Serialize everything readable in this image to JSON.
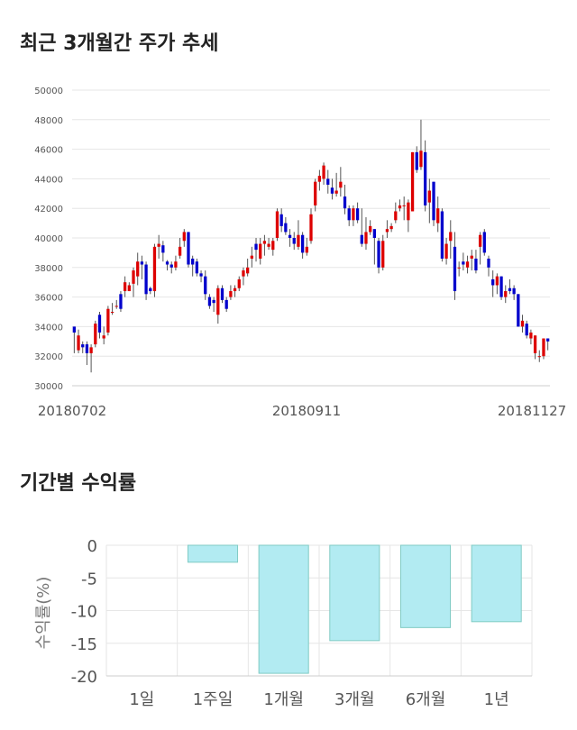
{
  "sections": {
    "price_title": "최근 3개월간 주가 추세",
    "return_title": "기간별 수익률"
  },
  "colors": {
    "up": "#dd0000",
    "down": "#0000cc",
    "bar_fill": "#b2ebf2",
    "bar_stroke": "#80cbc4",
    "grid": "#e6e6e6"
  },
  "chart_data": [
    {
      "type": "candlestick",
      "title": "최근 3개월간 주가 추세",
      "ylim": [
        30000,
        50000
      ],
      "y_ticks": [
        30000,
        32000,
        34000,
        36000,
        38000,
        40000,
        42000,
        44000,
        46000,
        48000,
        50000
      ],
      "x_tick_labels": [
        "20180702",
        "20180911",
        "20181127"
      ],
      "candles": [
        [
          34000,
          33600,
          34000,
          32200
        ],
        [
          32400,
          33400,
          33800,
          32200
        ],
        [
          32800,
          32600,
          33000,
          32200
        ],
        [
          32800,
          32200,
          33000,
          31400
        ],
        [
          32200,
          32600,
          32800,
          30900
        ],
        [
          32800,
          34200,
          34400,
          32600
        ],
        [
          34800,
          33600,
          35000,
          33200
        ],
        [
          33200,
          33400,
          34000,
          32800
        ],
        [
          33600,
          35200,
          35400,
          33400
        ],
        [
          35000,
          35000,
          35600,
          34800
        ],
        [
          35400,
          35400,
          35800,
          35200
        ],
        [
          36200,
          35200,
          36400,
          35000
        ],
        [
          36400,
          37000,
          37400,
          36000
        ],
        [
          36400,
          36800,
          37000,
          36400
        ],
        [
          36900,
          37800,
          38000,
          36000
        ],
        [
          37400,
          38400,
          39000,
          36800
        ],
        [
          38400,
          38200,
          38800,
          37200
        ],
        [
          38200,
          36200,
          38400,
          35800
        ],
        [
          36600,
          36400,
          36700,
          36200
        ],
        [
          36400,
          39400,
          39600,
          36000
        ],
        [
          39400,
          39600,
          40200,
          38600
        ],
        [
          39500,
          39000,
          39800,
          38400
        ],
        [
          38400,
          38200,
          38500,
          37800
        ],
        [
          38200,
          38000,
          38400,
          37600
        ],
        [
          38000,
          38400,
          38800,
          37800
        ],
        [
          38800,
          39400,
          40000,
          38600
        ],
        [
          39800,
          40400,
          40600,
          39400
        ],
        [
          40400,
          38200,
          40400,
          38000
        ],
        [
          38600,
          38200,
          38800,
          37400
        ],
        [
          38400,
          37600,
          38600,
          37400
        ],
        [
          37600,
          37400,
          37800,
          37000
        ],
        [
          37400,
          36200,
          37800,
          35800
        ],
        [
          36000,
          35400,
          36200,
          35200
        ],
        [
          35800,
          35600,
          36000,
          35000
        ],
        [
          34800,
          36600,
          36800,
          34200
        ],
        [
          36600,
          35800,
          36800,
          35600
        ],
        [
          35800,
          35200,
          36000,
          35000
        ],
        [
          36000,
          36400,
          36800,
          35800
        ],
        [
          36400,
          36600,
          36800,
          36000
        ],
        [
          36600,
          37200,
          37400,
          36400
        ],
        [
          37400,
          37800,
          38000,
          36800
        ],
        [
          37600,
          38000,
          38600,
          37400
        ],
        [
          38600,
          38800,
          39400,
          38000
        ],
        [
          39600,
          39200,
          40000,
          38400
        ],
        [
          38600,
          39600,
          40000,
          38200
        ],
        [
          39600,
          39800,
          40200,
          38800
        ],
        [
          39400,
          39600,
          40000,
          39200
        ],
        [
          39200,
          39800,
          40000,
          38800
        ],
        [
          40000,
          41800,
          42000,
          39800
        ],
        [
          41600,
          40800,
          42000,
          40400
        ],
        [
          41000,
          40400,
          41400,
          40200
        ],
        [
          40200,
          40000,
          40600,
          39400
        ],
        [
          40000,
          39600,
          40400,
          39200
        ],
        [
          39400,
          40200,
          41200,
          39200
        ],
        [
          40200,
          39000,
          40400,
          38600
        ],
        [
          39000,
          39400,
          40000,
          38800
        ],
        [
          39800,
          41600,
          42000,
          39600
        ],
        [
          42200,
          43800,
          44000,
          41800
        ],
        [
          43800,
          44200,
          44600,
          43200
        ],
        [
          44000,
          44900,
          45100,
          43600
        ],
        [
          44000,
          43600,
          44600,
          43000
        ],
        [
          43400,
          43000,
          44000,
          42600
        ],
        [
          43000,
          43200,
          44400,
          42800
        ],
        [
          43400,
          43800,
          44800,
          42800
        ],
        [
          42800,
          42000,
          43600,
          41600
        ],
        [
          42000,
          41200,
          42200,
          40800
        ],
        [
          41200,
          42000,
          42200,
          40800
        ],
        [
          42000,
          41200,
          42400,
          41000
        ],
        [
          40200,
          39600,
          42000,
          39400
        ],
        [
          39600,
          40400,
          41400,
          39200
        ],
        [
          40400,
          40800,
          41200,
          40200
        ],
        [
          40600,
          40000,
          40600,
          38200
        ],
        [
          39800,
          38000,
          40000,
          37600
        ],
        [
          38000,
          39800,
          40200,
          37800
        ],
        [
          40400,
          40600,
          41200,
          40000
        ],
        [
          40600,
          40800,
          41000,
          40400
        ],
        [
          41200,
          41800,
          42400,
          41000
        ],
        [
          42000,
          42200,
          42600,
          41800
        ],
        [
          42200,
          42200,
          42800,
          41200
        ],
        [
          41200,
          42400,
          42600,
          40400
        ],
        [
          41800,
          45800,
          45800,
          41800
        ],
        [
          45800,
          44600,
          46200,
          44400
        ],
        [
          44800,
          45900,
          48000,
          44600
        ],
        [
          45800,
          42200,
          46600,
          41800
        ],
        [
          42400,
          43200,
          44000,
          41000
        ],
        [
          43800,
          41200,
          43800,
          40800
        ],
        [
          41000,
          42000,
          42800,
          40400
        ],
        [
          41800,
          38600,
          42000,
          38400
        ],
        [
          38600,
          39600,
          40000,
          38200
        ],
        [
          39800,
          40400,
          41200,
          38600
        ],
        [
          39400,
          36400,
          40400,
          35800
        ],
        [
          38000,
          38000,
          38400,
          37400
        ],
        [
          38400,
          38200,
          39000,
          37800
        ],
        [
          38000,
          38400,
          38800,
          37600
        ],
        [
          38600,
          38800,
          39200,
          37800
        ],
        [
          38600,
          37800,
          39200,
          37600
        ],
        [
          39400,
          40200,
          40400,
          38200
        ],
        [
          40400,
          39000,
          40600,
          38800
        ],
        [
          38600,
          38000,
          38800,
          37400
        ],
        [
          37200,
          36800,
          37800,
          36000
        ],
        [
          36800,
          37400,
          37600,
          36200
        ],
        [
          37400,
          36000,
          37400,
          35800
        ],
        [
          36000,
          36400,
          36800,
          35600
        ],
        [
          36600,
          36400,
          37200,
          36200
        ],
        [
          36600,
          36200,
          36800,
          35800
        ],
        [
          36200,
          34000,
          36200,
          34000
        ],
        [
          34000,
          34400,
          34800,
          33600
        ],
        [
          34200,
          33400,
          34400,
          33200
        ],
        [
          33200,
          33600,
          33800,
          32800
        ],
        [
          32200,
          33400,
          33400,
          31800
        ],
        [
          32000,
          32000,
          32400,
          31600
        ],
        [
          32000,
          33200,
          33200,
          31800
        ],
        [
          33200,
          33000,
          33200,
          32400
        ]
      ]
    },
    {
      "type": "bar",
      "title": "기간별 수익률",
      "categories": [
        "1일",
        "1주일",
        "1개월",
        "3개월",
        "6개월",
        "1년"
      ],
      "values": [
        0,
        -2.6,
        -19.6,
        -14.6,
        -12.6,
        -11.7
      ],
      "ylabel": "수익률(%)",
      "ylim": [
        -20,
        0
      ],
      "y_ticks": [
        0,
        -5,
        -10,
        -15,
        -20
      ]
    }
  ]
}
